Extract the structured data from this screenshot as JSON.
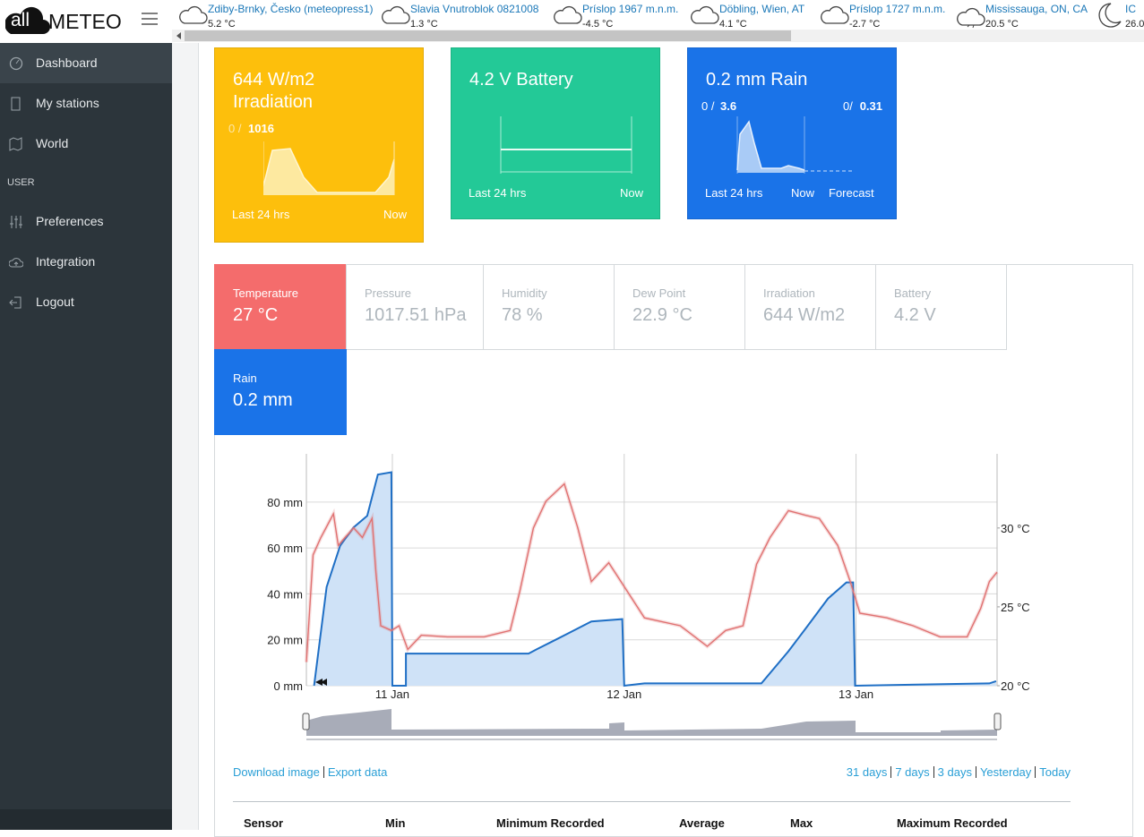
{
  "header": {
    "logo_prefix": "all",
    "logo_name": "METEO"
  },
  "stations": [
    {
      "name": "Zdiby-Brnky, Česko (meteopress1)",
      "temp": "5.2 °C"
    },
    {
      "name": "Slavia Vnutroblok 0821008",
      "temp": "1.3 °C"
    },
    {
      "name": "Príslop 1967 m.n.m.",
      "temp": "-4.5 °C"
    },
    {
      "name": "Döbling, Wien, AT",
      "temp": "4.1 °C"
    },
    {
      "name": "Príslop 1727 m.n.m.",
      "temp": "-2.7 °C"
    },
    {
      "name": "Mississauga, ON, CA",
      "temp": "20.5 °C"
    },
    {
      "name": "IC",
      "temp": "26.0"
    }
  ],
  "sidebar": {
    "items": [
      "Dashboard",
      "My stations",
      "World"
    ],
    "section": "USER",
    "user_items": [
      "Preferences",
      "Integration",
      "Logout"
    ]
  },
  "cards": [
    {
      "title": "644 W/m2",
      "subtitle": "Irradiation",
      "range_min": "0 /",
      "range_max": "1016",
      "start": "Last 24 hrs",
      "end": "Now"
    },
    {
      "title": "4.2 V Battery",
      "start": "Last 24 hrs",
      "end": "Now"
    },
    {
      "title": "0.2 mm Rain",
      "range_min": "0 /",
      "range_max": "3.6",
      "forecast_min": "0/",
      "forecast_max": "0.31",
      "start": "Last 24 hrs",
      "now": "Now",
      "end": "Forecast"
    }
  ],
  "tabs": [
    {
      "label": "Temperature",
      "value": "27 °C"
    },
    {
      "label": "Pressure",
      "value": "1017.51 hPa"
    },
    {
      "label": "Humidity",
      "value": "78 %"
    },
    {
      "label": "Dew Point",
      "value": "22.9 °C"
    },
    {
      "label": "Irradiation",
      "value": "644 W/m2"
    },
    {
      "label": "Battery",
      "value": "4.2 V"
    },
    {
      "label": "Rain",
      "value": "0.2 mm"
    }
  ],
  "chart": {
    "type": "line",
    "xlim": [
      -8.9,
      62.6
    ],
    "xticks": [
      {
        "value": 0,
        "label": "11 Jan"
      },
      {
        "value": 24,
        "label": "12 Jan"
      },
      {
        "value": 48,
        "label": "13 Jan"
      }
    ],
    "ylim": [
      0,
      101
    ],
    "yticks": [
      {
        "value": 0,
        "label": "0 mm"
      },
      {
        "value": 20,
        "label": "20 mm"
      },
      {
        "value": 40,
        "label": "40 mm"
      },
      {
        "value": 60,
        "label": "60 mm"
      },
      {
        "value": 80,
        "label": "80 mm"
      }
    ],
    "y2lim": [
      20,
      34.7
    ],
    "y2ticks": [
      {
        "value": 20,
        "label": "20 °C"
      },
      {
        "value": 25,
        "label": "25 °C"
      },
      {
        "value": 30,
        "label": "30 °C"
      }
    ],
    "series": [
      {
        "color": "#1f6fc5",
        "fill": "#cfe2f7",
        "x": [
          -8.1,
          -6.8,
          -5.4,
          -4.0,
          -2.6,
          -1.5,
          -0.1,
          0.0,
          1.4,
          1.4,
          14.1,
          15.0,
          16.9,
          20.6,
          23.8,
          24.0,
          26.1,
          38.2,
          41.0,
          42.8,
          45.1,
          47.0,
          47.7,
          47.9,
          61.8,
          62.5
        ],
        "values": [
          0,
          43,
          61,
          69,
          74,
          92,
          93,
          0,
          0,
          14,
          14,
          16,
          20,
          28,
          29,
          0,
          1,
          1,
          15,
          25,
          38,
          45,
          45,
          0,
          1,
          2
        ]
      },
      {
        "color": "#e07272",
        "axis": "y2",
        "x": [
          -8.9,
          -8.2,
          -7.4,
          -6.1,
          -5.6,
          -4.9,
          -4.0,
          -3.1,
          -2.1,
          -1.7,
          -1.2,
          -0.1,
          0.7,
          1.6,
          3.0,
          5.7,
          9.5,
          12.2,
          13.2,
          14.6,
          15.9,
          17.8,
          19.2,
          20.6,
          22.4,
          24.3,
          26.1,
          29.8,
          32.6,
          34.5,
          36.3,
          37.7,
          39.1,
          41.0,
          42.8,
          44.2,
          46.1,
          47.4,
          48.4,
          51.2,
          53.9,
          56.7,
          59.5,
          60.9,
          61.8,
          62.6
        ],
        "values": [
          21.5,
          28.3,
          29.4,
          30.9,
          28.9,
          29.4,
          30.0,
          29.4,
          30.6,
          27.2,
          23.8,
          23.5,
          23.8,
          22.3,
          23.2,
          23.1,
          23.1,
          23.5,
          26.0,
          30.0,
          31.7,
          32.8,
          30.0,
          26.6,
          27.8,
          26.0,
          24.3,
          23.8,
          22.5,
          23.5,
          23.8,
          27.7,
          29.4,
          31.1,
          30.8,
          30.6,
          28.9,
          26.6,
          24.6,
          24.3,
          23.8,
          23.1,
          23.1,
          24.9,
          26.6,
          27.2
        ]
      }
    ]
  },
  "links": {
    "left": [
      "Download image",
      "Export data"
    ],
    "right": [
      "31 days",
      "7 days",
      "3 days",
      "Yesterday",
      "Today"
    ]
  },
  "table": {
    "columns": [
      "Sensor",
      "Min",
      "Minimum Recorded",
      "Average",
      "Max",
      "Maximum Recorded"
    ]
  }
}
